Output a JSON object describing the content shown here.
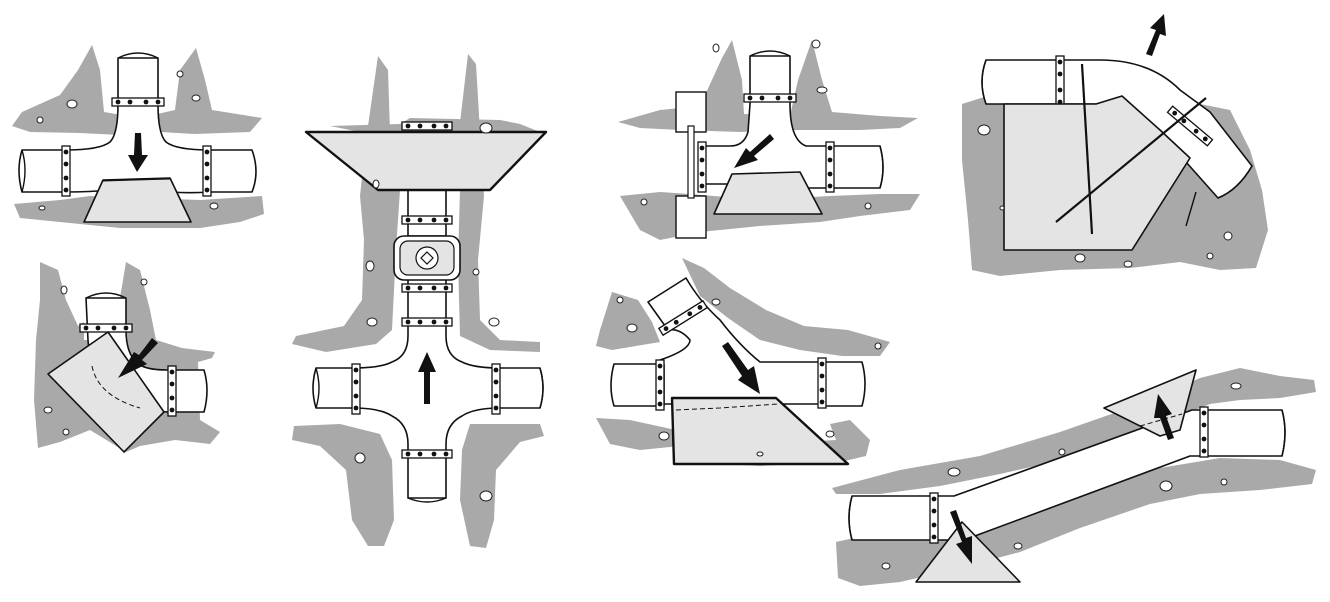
{
  "figure": {
    "panels": [
      {
        "id": "tee-with-base-block"
      },
      {
        "id": "bend-with-angled-block"
      },
      {
        "id": "cross-with-hydrant-and-top-block"
      },
      {
        "id": "tee-with-block-and-tie-rods"
      },
      {
        "id": "angled-branch-with-trapezoid-block"
      },
      {
        "id": "vertical-bend-with-block-and-tie-rods"
      },
      {
        "id": "offset-bends-with-two-blocks"
      }
    ]
  }
}
